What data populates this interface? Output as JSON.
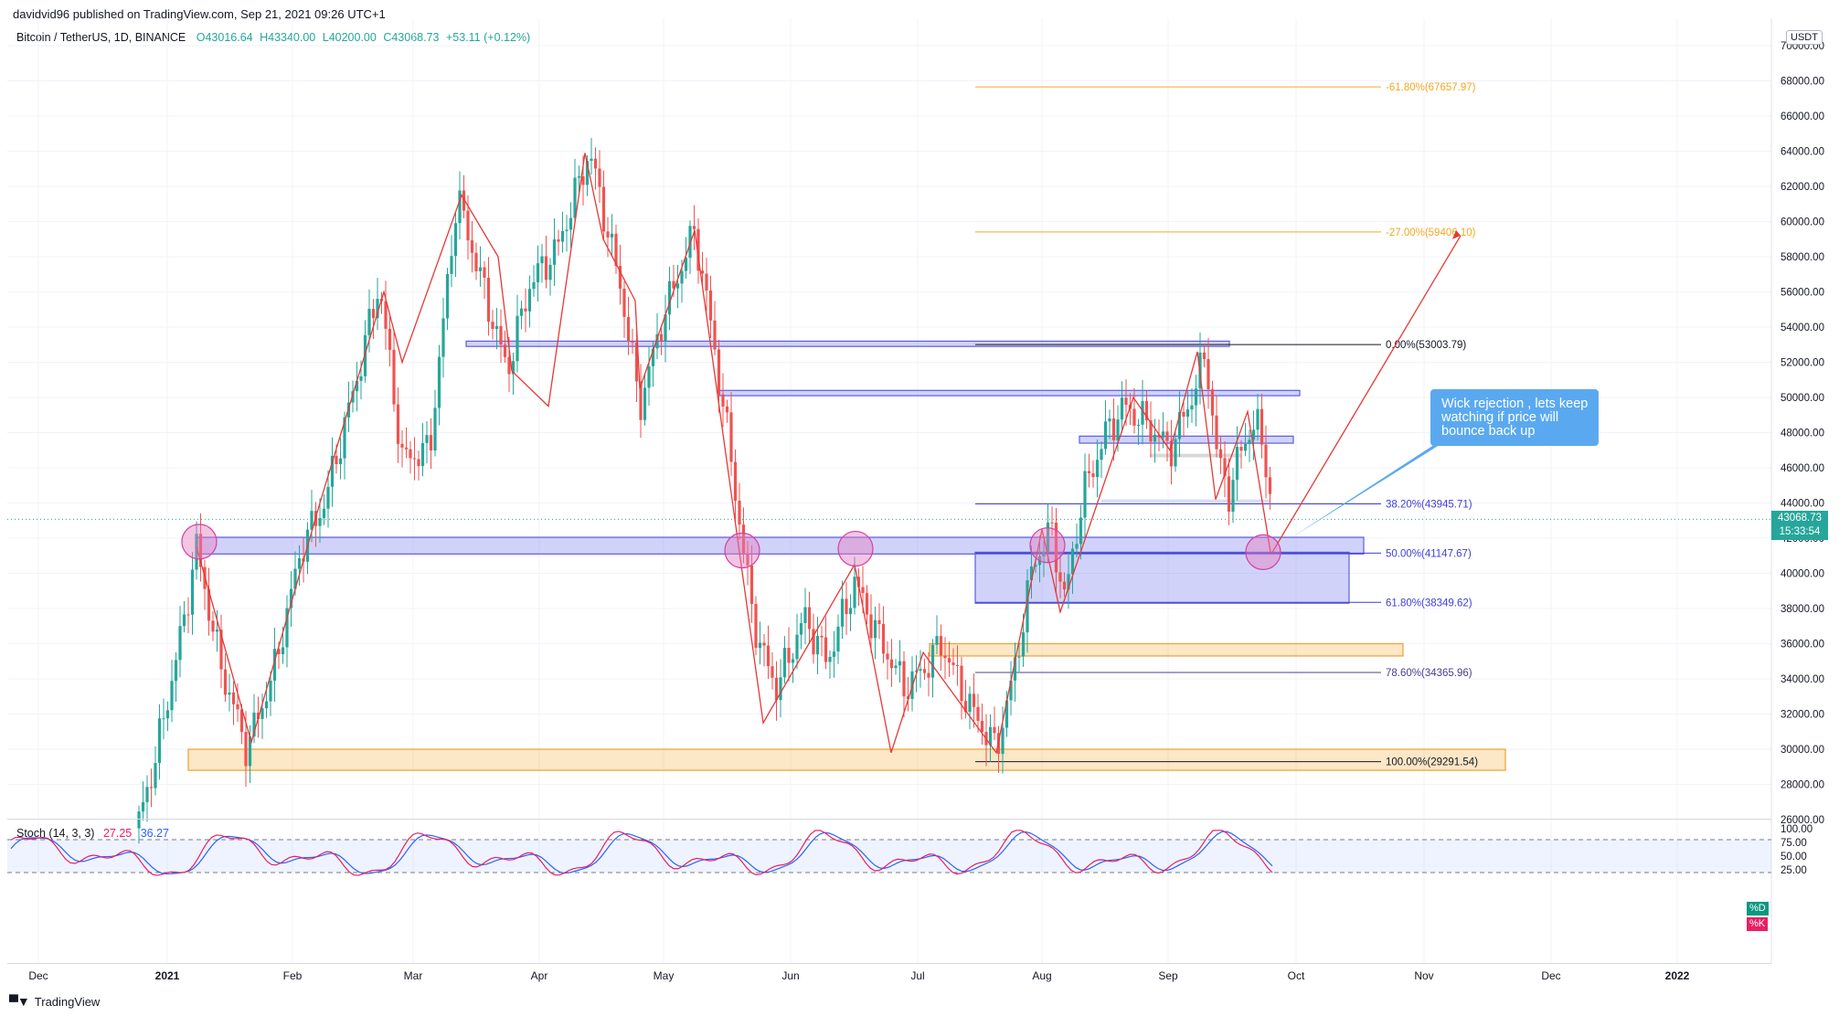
{
  "header": {
    "published": "davidvid96 published on TradingView.com, Sep 21, 2021 09:26 UTC+1",
    "symbol": "Bitcoin / TetherUS, 1D, BINANCE",
    "ohlc": {
      "o": "O43016.64",
      "h": "H43340.00",
      "l": "L40200.00",
      "c": "C43068.73",
      "chg": "+53.11 (+0.12%)"
    }
  },
  "price_axis": {
    "currency": "USDT",
    "labels": [
      "70000.00",
      "68000.00",
      "66000.00",
      "64000.00",
      "62000.00",
      "60000.00",
      "58000.00",
      "56000.00",
      "54000.00",
      "52000.00",
      "50000.00",
      "48000.00",
      "46000.00",
      "44000.00",
      "42000.00",
      "40000.00",
      "38000.00",
      "36000.00",
      "34000.00",
      "32000.00",
      "30000.00",
      "28000.00",
      "26000.00"
    ],
    "last_price": "43068.73",
    "countdown": "15:33:54"
  },
  "time_axis": [
    "Dec",
    "2021",
    "Feb",
    "Mar",
    "Apr",
    "May",
    "Jun",
    "Jul",
    "Aug",
    "Sep",
    "Oct",
    "Nov",
    "Dec",
    "2022"
  ],
  "fib_levels": [
    {
      "label": "-61.80%(67657.97)",
      "color": "#f5a623"
    },
    {
      "label": "-27.00%(59406.10)",
      "color": "#f5a623"
    },
    {
      "label": "0.00%(53003.79)",
      "color": "#131722"
    },
    {
      "label": "38.20%(43945.71)",
      "color": "#3f3fd6"
    },
    {
      "label": "50.00%(41147.67)",
      "color": "#3f3fd6"
    },
    {
      "label": "61.80%(38349.62)",
      "color": "#3f3fd6"
    },
    {
      "label": "78.60%(34365.96)",
      "color": "#4b3d8f"
    },
    {
      "label": "100.00%(29291.54)",
      "color": "#131722"
    }
  ],
  "annotation": {
    "text": "Wick rejection , lets keep watching if price will bounce back up"
  },
  "stochastic": {
    "name": "Stoch (14, 3, 3)",
    "k_value": "27.25",
    "d_value": "36.27",
    "k_color": "#e91e63",
    "d_color": "#2962ff",
    "axis_labels": [
      "100.00",
      "75.00",
      "50.00",
      "25.00"
    ],
    "tag_d": "%D",
    "tag_k": "%K"
  },
  "footer": {
    "brand": "TradingView"
  },
  "colors": {
    "up": "#26a69a",
    "down": "#ef5350",
    "zone_blue": "#7b7ff0",
    "zone_orange": "#f5b041",
    "circle": "#e47ec2"
  }
}
